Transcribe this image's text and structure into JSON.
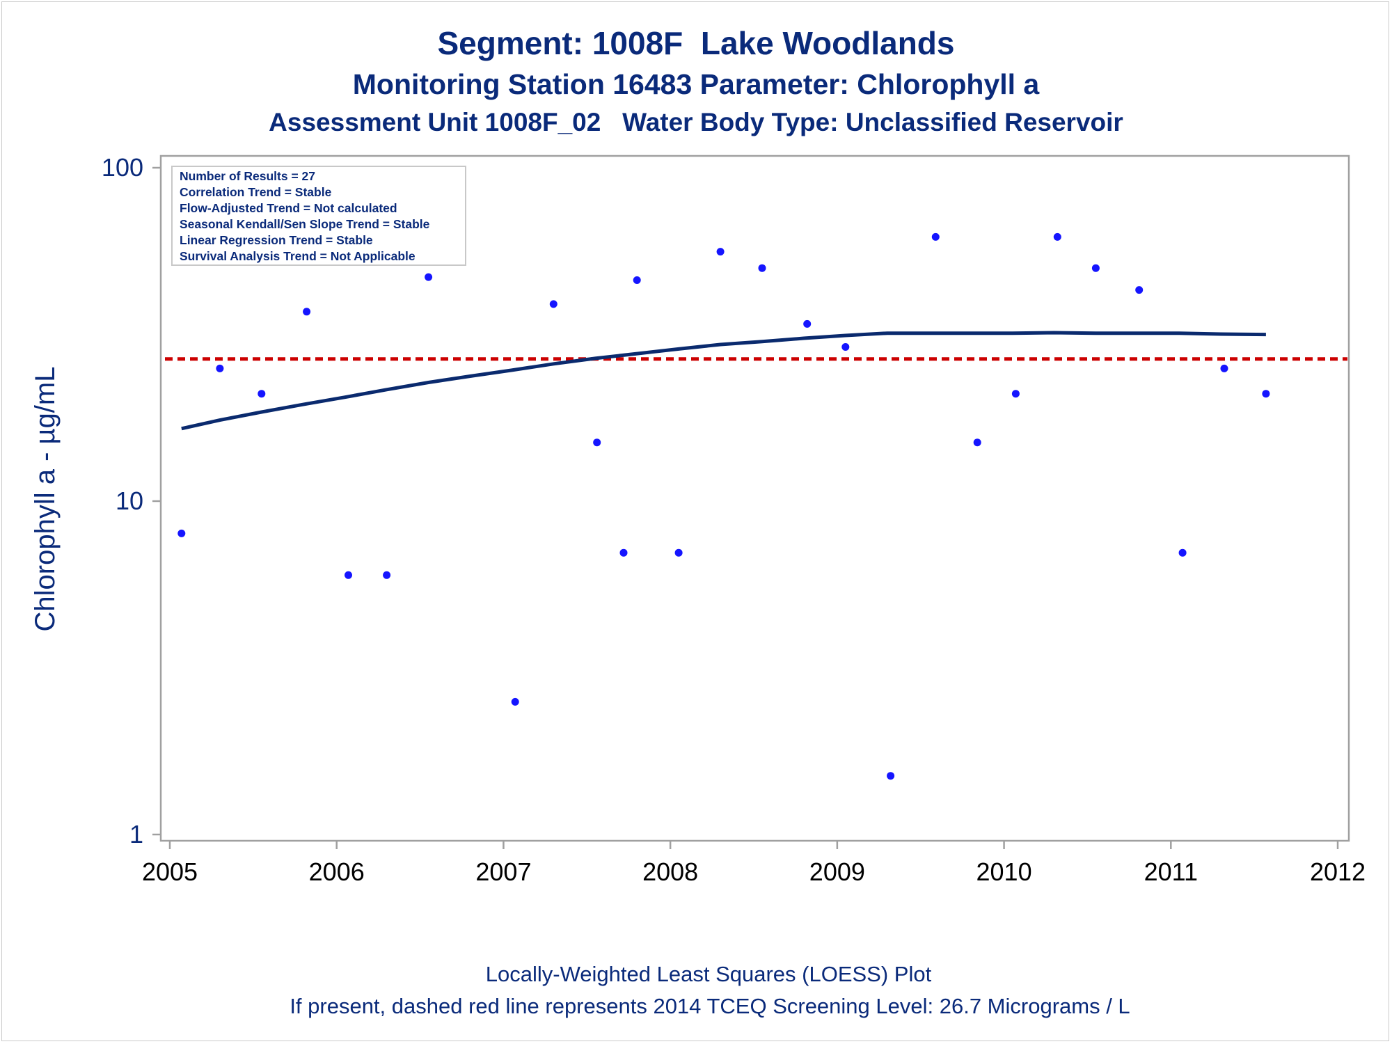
{
  "titles": {
    "line1": "Segment: 1008F  Lake Woodlands",
    "line2": "Monitoring Station 16483 Parameter: Chlorophyll a",
    "line3": "Assessment Unit 1008F_02   Water Body Type: Unclassified Reservoir"
  },
  "footnotes": {
    "line1": "Locally-Weighted Least Squares (LOESS) Plot",
    "line2": "If present, dashed red line represents 2014 TCEQ Screening Level: 26.7 Micrograms / L"
  },
  "stats_box": [
    "Number of Results = 27",
    "Correlation Trend = Stable",
    "Flow-Adjusted Trend = Not calculated",
    "Seasonal Kendall/Sen Slope Trend = Stable",
    "Linear Regression Trend = Stable",
    "Survival Analysis Trend = Not Applicable"
  ],
  "colors": {
    "points": "#1515ff",
    "loess": "#0a2a6e",
    "screening_line": "#cc0000",
    "text": "#0a2a7a",
    "axis": "#a0a0a0"
  },
  "chart_data": {
    "type": "scatter",
    "ylabel": "Chlorophyll a -  µg/mL",
    "xlabel": "",
    "x_ticks": [
      "2005",
      "2006",
      "2007",
      "2008",
      "2009",
      "2010",
      "2011",
      "2012"
    ],
    "y_ticks": [
      "1",
      "10",
      "100"
    ],
    "y_scale": "log",
    "xlim": [
      2005,
      2012
    ],
    "ylim": [
      1,
      100
    ],
    "grid": false,
    "series": [
      {
        "kind": "points",
        "x": [
          2005.07,
          2005.3,
          2005.55,
          2005.82,
          2006.07,
          2006.3,
          2006.55,
          2007.07,
          2007.3,
          2007.56,
          2007.72,
          2007.8,
          2008.05,
          2008.3,
          2008.55,
          2008.82,
          2009.05,
          2009.32,
          2009.59,
          2009.84,
          2010.07,
          2010.32,
          2010.55,
          2010.81,
          2011.07,
          2011.32,
          2011.57
        ],
        "y": [
          8,
          25,
          21,
          37,
          6,
          6,
          47,
          2.5,
          39,
          15,
          7,
          46,
          7,
          56,
          50,
          34,
          29,
          1.5,
          62,
          15,
          21,
          62,
          50,
          43,
          7,
          25,
          21
        ]
      },
      {
        "kind": "loess",
        "x": [
          2005.07,
          2005.3,
          2005.55,
          2005.8,
          2006.05,
          2006.3,
          2006.55,
          2006.8,
          2007.05,
          2007.3,
          2007.55,
          2007.8,
          2008.05,
          2008.3,
          2008.55,
          2008.8,
          2009.05,
          2009.3,
          2009.55,
          2009.8,
          2010.05,
          2010.3,
          2010.55,
          2010.8,
          2011.05,
          2011.3,
          2011.57
        ],
        "y": [
          16.5,
          17.5,
          18.5,
          19.5,
          20.5,
          21.6,
          22.7,
          23.7,
          24.7,
          25.8,
          26.8,
          27.7,
          28.6,
          29.5,
          30.1,
          30.8,
          31.4,
          31.9,
          31.9,
          31.9,
          31.9,
          32.0,
          31.9,
          31.9,
          31.9,
          31.7,
          31.6
        ]
      }
    ],
    "reference_line": {
      "y": 26.7,
      "style": "dashed"
    }
  }
}
